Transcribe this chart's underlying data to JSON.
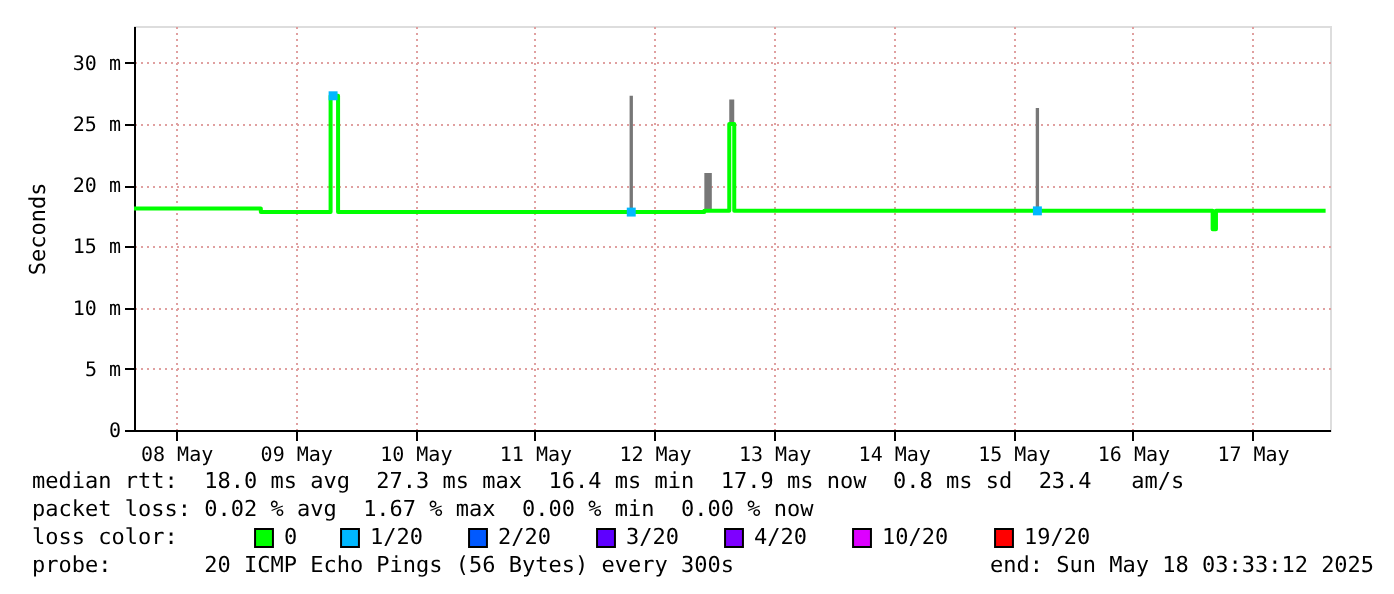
{
  "chart_data": {
    "type": "line",
    "ylabel": "Seconds",
    "xlim": [
      "2025-05-08T03:33",
      "2025-05-18T03:33"
    ],
    "xticks": [
      {
        "value": "2025-05-08T12:00",
        "label": "08 May"
      },
      {
        "value": "2025-05-09T12:00",
        "label": "09 May"
      },
      {
        "value": "2025-05-10T12:00",
        "label": "10 May"
      },
      {
        "value": "2025-05-11T12:00",
        "label": "11 May"
      },
      {
        "value": "2025-05-12T12:00",
        "label": "12 May"
      },
      {
        "value": "2025-05-13T12:00",
        "label": "13 May"
      },
      {
        "value": "2025-05-14T12:00",
        "label": "14 May"
      },
      {
        "value": "2025-05-15T12:00",
        "label": "15 May"
      },
      {
        "value": "2025-05-16T12:00",
        "label": "16 May"
      },
      {
        "value": "2025-05-17T12:00",
        "label": "17 May"
      }
    ],
    "ylim": [
      0,
      33
    ],
    "yticks": [
      0,
      {
        "value": 5,
        "label": "5 m"
      },
      {
        "value": 10,
        "label": "10 m"
      },
      {
        "value": 15,
        "label": "15 m"
      },
      {
        "value": 20,
        "label": "20 m"
      },
      {
        "value": 25,
        "label": "25 m"
      },
      {
        "value": 30,
        "label": "30 m"
      }
    ],
    "grid": true,
    "legend": "bottom",
    "legend_title": "loss color:",
    "marker": "none",
    "line_style": "solid",
    "series": [
      {
        "name": "0",
        "color": "#00ff00",
        "x": [
          "2025-05-08T03:33",
          "2025-05-09T05:00",
          "2025-05-09T18:55",
          "2025-05-09T19:00",
          "2025-05-09T20:30",
          "2025-05-12T07:00",
          "2025-05-12T07:40",
          "2025-05-12T22:00",
          "2025-05-12T23:30",
          "2025-05-13T03:00",
          "2025-05-13T04:00",
          "2025-05-15T16:30",
          "2025-05-15T17:10",
          "2025-05-17T04:00",
          "2025-05-17T04:40",
          "2025-05-18T02:40"
        ],
        "values": [
          18.1,
          17.8,
          17.8,
          27.3,
          17.8,
          17.8,
          17.8,
          17.9,
          17.9,
          25,
          17.9,
          17.9,
          17.9,
          16.4,
          17.9,
          17.9
        ],
        "lower": [
          18.1,
          17.8,
          17.8,
          27.3,
          17.8,
          17.8,
          17.8,
          17.9,
          17.9,
          25,
          17.9,
          17.9,
          17.9,
          16.4,
          17.9,
          17.9
        ],
        "upper": [
          18.1,
          17.8,
          17.8,
          27.3,
          17.8,
          27.3,
          17.8,
          21,
          17.9,
          27,
          17.9,
          26.3,
          17.9,
          16.4,
          17.9,
          17.9
        ]
      },
      {
        "name": "1/20",
        "color": "#00b8ff",
        "type": "scatter",
        "marker": "square",
        "x": [
          "2025-05-09T19:30",
          "2025-05-12T07:20",
          "2025-05-15T16:50"
        ],
        "values": [
          27.3,
          17.8,
          17.9
        ]
      },
      {
        "name": "2/20",
        "color": "#0059ff",
        "type": "scatter",
        "marker": "square"
      },
      {
        "name": "3/20",
        "color": "#5e00ff",
        "type": "scatter",
        "marker": "square"
      },
      {
        "name": "4/20",
        "color": "#7e00ff",
        "type": "scatter",
        "marker": "square"
      },
      {
        "name": "10/20",
        "color": "#dd00ff",
        "type": "scatter",
        "marker": "square"
      },
      {
        "name": "19/20",
        "color": "#ff0000",
        "type": "scatter",
        "marker": "square"
      }
    ],
    "annotations": [
      "median rtt:  18.0 ms avg  27.3 ms max  16.4 ms min  17.9 ms now  0.8 ms sd  23.4   am/s",
      "packet loss: 0.02 % avg  1.67 % max  0.00 % min  0.00 % now",
      "probe:       20 ICMP Echo Pings (56 Bytes) every 300s",
      "end: Sun May 18 03:33:12 2025"
    ]
  }
}
